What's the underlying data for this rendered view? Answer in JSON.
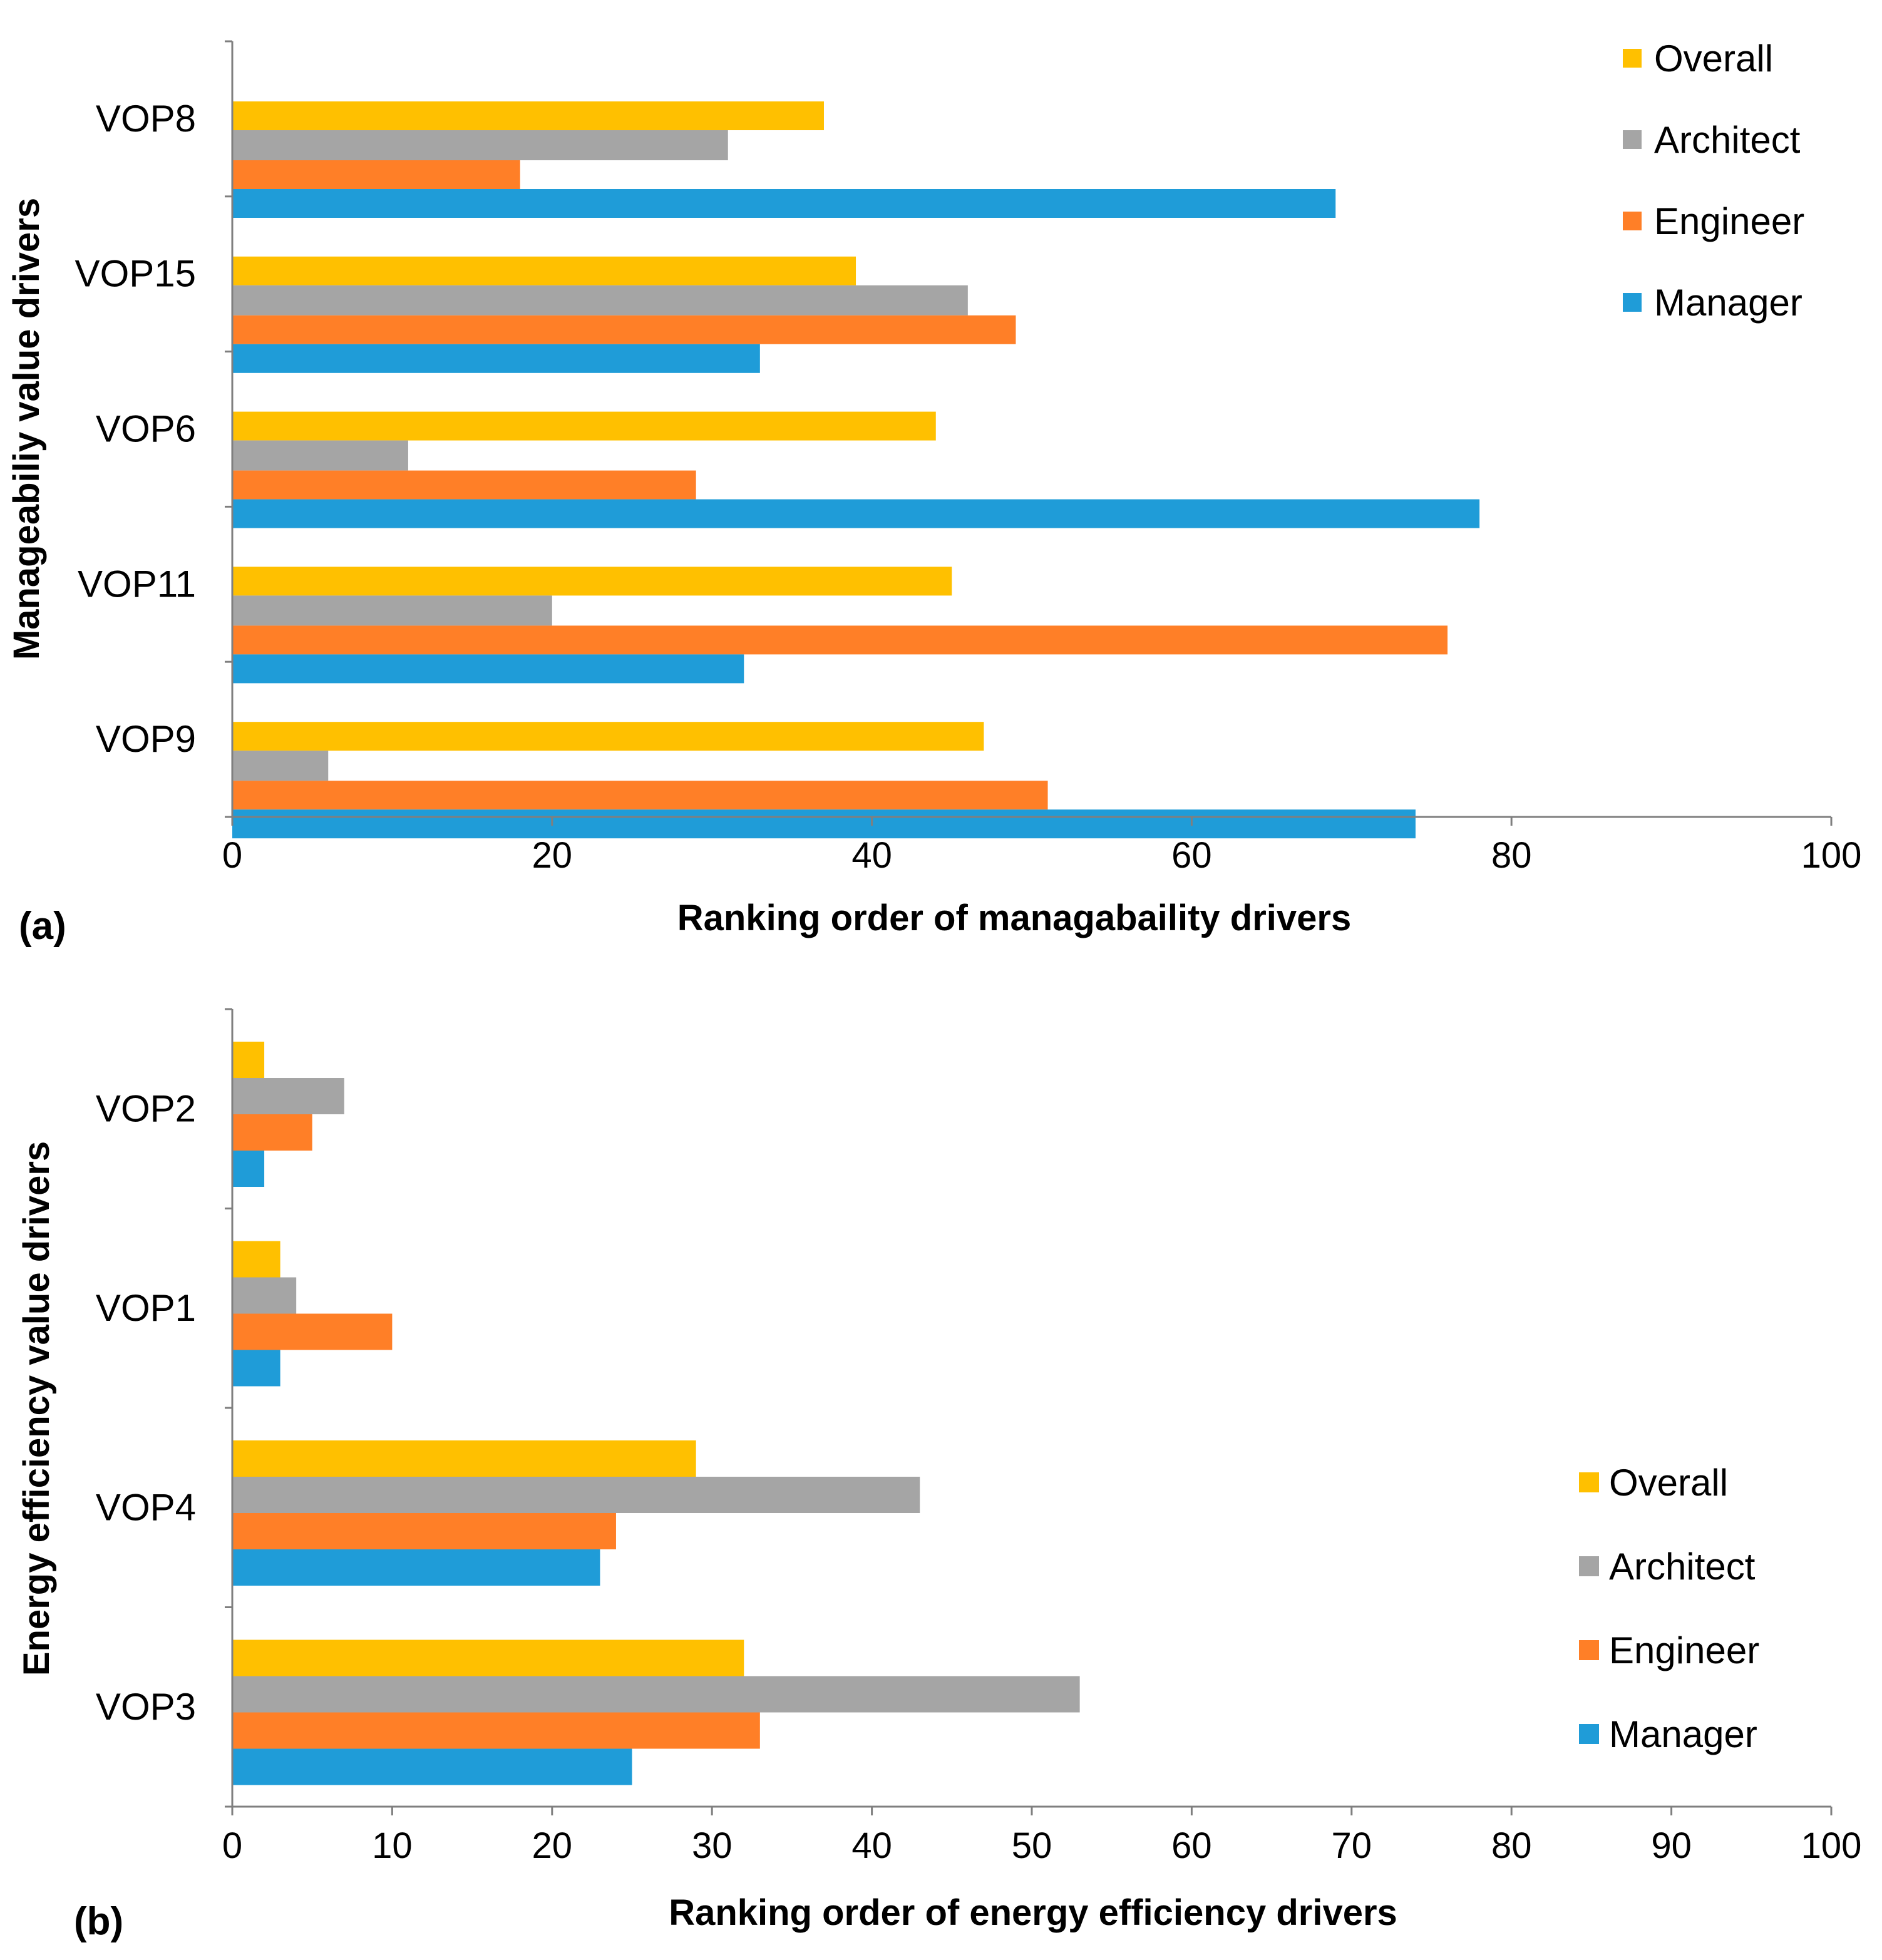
{
  "figure": {
    "background": "#ffffff",
    "series_colors": {
      "Overall": "#FFC000",
      "Architect": "#A5A5A5",
      "Engineer": "#FF7F27",
      "Manager": "#1F9CD8"
    }
  },
  "chart_data": [
    {
      "type": "bar",
      "orientation": "horizontal",
      "panel_label": "(a)",
      "title": "",
      "xlabel": "Ranking order of managabaility drivers",
      "ylabel": "Manageabiliy value drivers",
      "xlim": [
        0,
        100
      ],
      "xticks": [
        0,
        20,
        40,
        60,
        80,
        100
      ],
      "xtick_labels": [
        "0",
        "20",
        "40",
        "60",
        "80",
        "100"
      ],
      "categories": [
        "VOP8",
        "VOP15",
        "VOP6",
        "VOP11",
        "VOP9"
      ],
      "series": [
        {
          "name": "Overall",
          "values": [
            37,
            39,
            44,
            45,
            47
          ]
        },
        {
          "name": "Architect",
          "values": [
            31,
            46,
            11,
            20,
            6
          ]
        },
        {
          "name": "Engineer",
          "values": [
            18,
            49,
            29,
            76,
            51
          ]
        },
        {
          "name": "Manager",
          "values": [
            69,
            33,
            78,
            32,
            74
          ]
        }
      ],
      "legend": {
        "position": "top-right",
        "entries": [
          "Overall",
          "Architect",
          "Engineer",
          "Manager"
        ]
      },
      "grid": false
    },
    {
      "type": "bar",
      "orientation": "horizontal",
      "panel_label": "(b)",
      "title": "",
      "xlabel": "Ranking order of energy efficiency drivers",
      "ylabel": "Energy efficiency value drivers",
      "xlim": [
        0,
        100
      ],
      "xticks": [
        0,
        10,
        20,
        30,
        40,
        50,
        60,
        70,
        80,
        90,
        100
      ],
      "xtick_labels": [
        "0",
        "10",
        "20",
        "30",
        "40",
        "50",
        "60",
        "70",
        "80",
        "90",
        "100"
      ],
      "categories": [
        "VOP2",
        "VOP1",
        "VOP4",
        "VOP3"
      ],
      "series": [
        {
          "name": "Overall",
          "values": [
            2,
            3,
            29,
            32
          ]
        },
        {
          "name": "Architect",
          "values": [
            7,
            4,
            43,
            53
          ]
        },
        {
          "name": "Engineer",
          "values": [
            5,
            10,
            24,
            33
          ]
        },
        {
          "name": "Manager",
          "values": [
            2,
            3,
            23,
            25
          ]
        }
      ],
      "legend": {
        "position": "bottom-right",
        "entries": [
          "Overall",
          "Architect",
          "Engineer",
          "Manager"
        ]
      },
      "grid": false
    }
  ]
}
